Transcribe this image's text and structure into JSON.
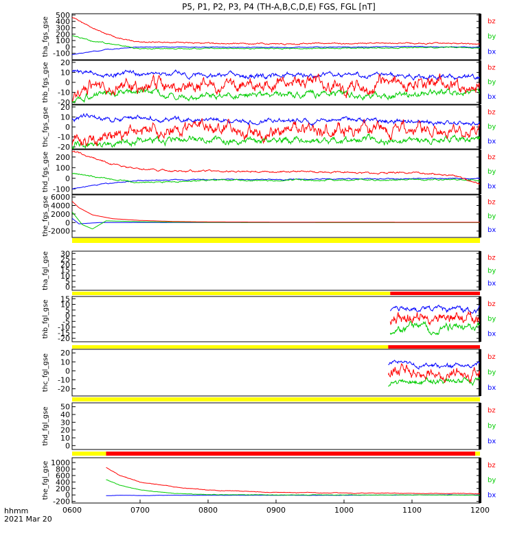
{
  "title": "P5, P1, P2, P3, P4 (TH-A,B,C,D,E) FGS, FGL [nT]",
  "colors": {
    "bz": "#ff0000",
    "by": "#00cc00",
    "bx": "#0000ff",
    "flag_yellow": "#ffff00",
    "flag_red": "#ff0000"
  },
  "xaxis": {
    "tick_labels": [
      "0600",
      "0700",
      "0800",
      "0900",
      "1000",
      "1100",
      "1200"
    ],
    "range_hours": [
      6,
      12
    ],
    "label": "hhmm",
    "date": "2021 Mar 20"
  },
  "legend_labels": [
    "bz",
    "by",
    "bx"
  ],
  "chart_data": [
    {
      "type": "line",
      "ylabel": "tha_fgs_gse",
      "ylim": [
        -200,
        520
      ],
      "ticks": [
        -100,
        0,
        100,
        200,
        300,
        400,
        500
      ],
      "tick_labels": [
        "-100",
        "0",
        "100",
        "200",
        "300",
        "400",
        "500"
      ],
      "series": [
        {
          "name": "bz",
          "x": [
            6.0,
            6.3,
            6.7,
            7.0,
            8.0,
            9.0,
            10.0,
            11.0,
            11.6,
            12.0
          ],
          "values": [
            470,
            300,
            130,
            80,
            60,
            50,
            55,
            60,
            55,
            40
          ],
          "noise": 12
        },
        {
          "name": "by",
          "x": [
            6.0,
            6.3,
            6.7,
            7.0,
            8.0,
            9.0,
            10.0,
            11.0,
            11.6,
            12.0
          ],
          "values": [
            180,
            90,
            30,
            -30,
            -20,
            -25,
            -20,
            -15,
            -10,
            -15
          ],
          "noise": 10
        },
        {
          "name": "bx",
          "x": [
            6.0,
            6.3,
            6.7,
            7.0,
            8.0,
            9.0,
            10.0,
            11.0,
            11.6,
            12.0
          ],
          "values": [
            -120,
            -70,
            -20,
            0,
            -5,
            -5,
            0,
            5,
            0,
            -5
          ],
          "noise": 6
        }
      ]
    },
    {
      "type": "line",
      "ylabel": "thb_fgs_gse",
      "ylim": [
        -22,
        22
      ],
      "ticks": [
        -20,
        -10,
        0,
        10,
        20
      ],
      "tick_labels": [
        "-20",
        "-10",
        "0",
        "10",
        "20"
      ],
      "series": [
        {
          "name": "bz",
          "x": [
            6.0,
            6.2,
            7.0,
            8.0,
            9.0,
            10.0,
            11.0,
            12.0
          ],
          "values": [
            -15,
            -5,
            0,
            -5,
            0,
            -5,
            0,
            -5
          ],
          "noise": 8
        },
        {
          "name": "by",
          "x": [
            6.0,
            6.2,
            7.0,
            8.0,
            9.0,
            10.0,
            11.0,
            12.0
          ],
          "values": [
            -18,
            -12,
            -10,
            -15,
            -12,
            -12,
            -14,
            -10
          ],
          "noise": 4
        },
        {
          "name": "bx",
          "x": [
            6.0,
            6.2,
            7.0,
            8.0,
            9.0,
            10.0,
            11.0,
            12.0
          ],
          "values": [
            12,
            10,
            8,
            8,
            6,
            8,
            6,
            5
          ],
          "noise": 3
        }
      ]
    },
    {
      "type": "line",
      "ylabel": "thc_fgs_gse",
      "ylim": [
        -22,
        22
      ],
      "ticks": [
        -20,
        -10,
        0,
        10,
        20
      ],
      "tick_labels": [
        "-20",
        "-10",
        "0",
        "10",
        "20"
      ],
      "series": [
        {
          "name": "bz",
          "x": [
            6.0,
            6.5,
            7.0,
            8.0,
            9.0,
            10.0,
            11.0,
            12.0
          ],
          "values": [
            -15,
            -10,
            -5,
            0,
            -5,
            -2,
            -5,
            0
          ],
          "noise": 8
        },
        {
          "name": "by",
          "x": [
            6.0,
            6.5,
            7.0,
            8.0,
            9.0,
            10.0,
            11.0,
            12.0
          ],
          "values": [
            -18,
            -16,
            -14,
            -12,
            -15,
            -12,
            -14,
            -10
          ],
          "noise": 4
        },
        {
          "name": "bx",
          "x": [
            6.0,
            6.5,
            7.0,
            8.0,
            9.0,
            10.0,
            11.0,
            12.0
          ],
          "values": [
            10,
            9,
            8,
            8,
            6,
            8,
            6,
            5
          ],
          "noise": 3
        }
      ]
    },
    {
      "type": "line",
      "ylabel": "thd_fgs_gse",
      "ylim": [
        -150,
        270
      ],
      "ticks": [
        -100,
        0,
        100,
        200
      ],
      "tick_labels": [
        "-100",
        "0",
        "100",
        "200"
      ],
      "series": [
        {
          "name": "bz",
          "x": [
            6.0,
            6.5,
            7.0,
            8.0,
            9.0,
            10.0,
            11.0,
            11.6,
            12.0
          ],
          "values": [
            260,
            150,
            80,
            70,
            60,
            55,
            50,
            30,
            -50
          ],
          "noise": 10
        },
        {
          "name": "by",
          "x": [
            6.0,
            6.5,
            7.0,
            8.0,
            9.0,
            10.0,
            11.0,
            11.6,
            12.0
          ],
          "values": [
            50,
            0,
            -40,
            -20,
            -20,
            -15,
            -15,
            -10,
            -20
          ],
          "noise": 8
        },
        {
          "name": "bx",
          "x": [
            6.0,
            6.5,
            7.0,
            8.0,
            9.0,
            10.0,
            11.0,
            11.6,
            12.0
          ],
          "values": [
            -100,
            -50,
            -20,
            -10,
            -10,
            -5,
            -5,
            0,
            0
          ],
          "noise": 5
        }
      ]
    },
    {
      "type": "line",
      "ylabel": "the_fgs_gse",
      "ylim": [
        -3500,
        6500
      ],
      "ticks": [
        -2000,
        0,
        2000,
        4000,
        6000
      ],
      "tick_labels": [
        "-2000",
        "0",
        "2000",
        "4000",
        "6000"
      ],
      "series": [
        {
          "name": "bz",
          "x": [
            6.0,
            6.1,
            6.3,
            6.6,
            7.0,
            7.5,
            8.0,
            9.0,
            10.0,
            11.0,
            12.0
          ],
          "values": [
            5000,
            3500,
            1800,
            900,
            500,
            250,
            150,
            100,
            80,
            70,
            60
          ],
          "noise": 0
        },
        {
          "name": "by",
          "x": [
            6.0,
            6.15,
            6.3,
            6.5,
            7.0,
            7.5,
            8.0,
            9.0,
            10.0,
            11.0,
            12.0
          ],
          "values": [
            2500,
            -500,
            -1500,
            400,
            200,
            100,
            50,
            30,
            20,
            20,
            20
          ],
          "noise": 0
        },
        {
          "name": "bx",
          "x": [
            6.0,
            6.1,
            6.2,
            6.4,
            7.0,
            7.5,
            8.0,
            9.0,
            10.0,
            11.0,
            12.0
          ],
          "values": [
            1000,
            -300,
            -200,
            0,
            30,
            20,
            10,
            10,
            10,
            10,
            10
          ],
          "noise": 0
        }
      ]
    },
    {
      "type": "line",
      "ylabel": "tha_fgl_gse",
      "ylim": [
        -3,
        32
      ],
      "ticks": [
        0,
        5,
        10,
        15,
        20,
        25,
        30
      ],
      "tick_labels": [
        "0",
        "5",
        "10",
        "15",
        "20",
        "25",
        "30"
      ],
      "series": []
    },
    {
      "type": "line",
      "ylabel": "thb_fgl_gse",
      "ylim": [
        -23,
        17
      ],
      "ticks": [
        -20,
        -15,
        -10,
        -5,
        0,
        5,
        10,
        15
      ],
      "tick_labels": [
        "-20",
        "-15",
        "-10",
        "-5",
        "0",
        "5",
        "10",
        "15"
      ],
      "series": [
        {
          "name": "bz",
          "x": [
            10.68,
            11.0,
            11.5,
            12.0
          ],
          "values": [
            -2,
            0,
            -3,
            0
          ],
          "noise": 7
        },
        {
          "name": "by",
          "x": [
            10.68,
            11.0,
            11.5,
            12.0
          ],
          "values": [
            -14,
            -10,
            -12,
            -8
          ],
          "noise": 4
        },
        {
          "name": "bx",
          "x": [
            10.68,
            11.0,
            11.5,
            12.0
          ],
          "values": [
            6,
            7,
            5,
            6
          ],
          "noise": 3
        }
      ]
    },
    {
      "type": "line",
      "ylabel": "thc_fgl_gse",
      "ylim": [
        -28,
        24
      ],
      "ticks": [
        -20,
        -10,
        0,
        10,
        20
      ],
      "tick_labels": [
        "-20",
        "-10",
        "0",
        "10",
        "20"
      ],
      "series": [
        {
          "name": "bz",
          "x": [
            10.65,
            11.0,
            11.5,
            12.0
          ],
          "values": [
            0,
            2,
            -3,
            0
          ],
          "noise": 8
        },
        {
          "name": "by",
          "x": [
            10.65,
            11.0,
            11.5,
            12.0
          ],
          "values": [
            -15,
            -12,
            -12,
            -10
          ],
          "noise": 4
        },
        {
          "name": "bx",
          "x": [
            10.65,
            11.0,
            11.5,
            12.0
          ],
          "values": [
            8,
            7,
            6,
            7
          ],
          "noise": 3
        }
      ]
    },
    {
      "type": "line",
      "ylabel": "thd_fgl_gse",
      "ylim": [
        -5,
        55
      ],
      "ticks": [
        0,
        10,
        20,
        30,
        40,
        50
      ],
      "tick_labels": [
        "0",
        "10",
        "20",
        "30",
        "40",
        "50"
      ],
      "series": []
    },
    {
      "type": "line",
      "ylabel": "the_fgl_gse",
      "ylim": [
        -250,
        1150
      ],
      "ticks": [
        -200,
        0,
        200,
        400,
        600,
        800,
        1000
      ],
      "tick_labels": [
        "-200",
        "0",
        "200",
        "400",
        "600",
        "800",
        "1000"
      ],
      "series": [
        {
          "name": "bz",
          "x": [
            6.5,
            6.7,
            7.0,
            7.5,
            8.0,
            9.0,
            10.0,
            11.0,
            12.0
          ],
          "values": [
            850,
            600,
            400,
            250,
            150,
            80,
            60,
            50,
            40
          ],
          "noise": 10
        },
        {
          "name": "by",
          "x": [
            6.5,
            6.7,
            7.0,
            7.5,
            8.0,
            9.0,
            10.0,
            11.0,
            12.0
          ],
          "values": [
            480,
            300,
            150,
            50,
            10,
            0,
            0,
            0,
            -10
          ],
          "noise": 8
        },
        {
          "name": "bx",
          "x": [
            6.5,
            6.7,
            7.0,
            7.5,
            8.0,
            9.0,
            10.0,
            11.0,
            12.0
          ],
          "values": [
            -20,
            -10,
            -20,
            -10,
            -10,
            -10,
            -10,
            0,
            0
          ],
          "noise": 5
        }
      ]
    }
  ],
  "flag_bars": [
    {
      "segments": [
        {
          "from": 6.0,
          "to": 12.0,
          "color": "yellow"
        }
      ]
    },
    {
      "segments": [
        {
          "from": 6.0,
          "to": 10.68,
          "color": "yellow"
        },
        {
          "from": 10.68,
          "to": 12.0,
          "color": "red"
        }
      ]
    },
    {
      "segments": [
        {
          "from": 6.0,
          "to": 10.65,
          "color": "yellow"
        },
        {
          "from": 10.65,
          "to": 12.0,
          "color": "red"
        }
      ]
    },
    {
      "segments": [
        {
          "from": 6.0,
          "to": 12.0,
          "color": "yellow"
        }
      ]
    },
    {
      "segments": [
        {
          "from": 6.0,
          "to": 6.5,
          "color": "yellow"
        },
        {
          "from": 6.5,
          "to": 11.93,
          "color": "red"
        },
        {
          "from": 11.93,
          "to": 12.0,
          "color": "yellow"
        }
      ]
    }
  ]
}
